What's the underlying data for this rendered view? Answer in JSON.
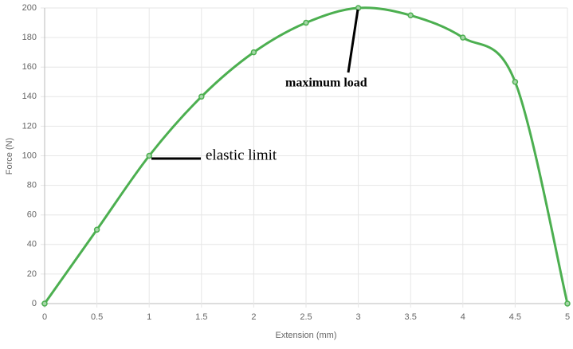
{
  "chart_data": {
    "type": "line",
    "x": [
      0,
      0.5,
      1,
      1.5,
      2,
      2.5,
      3,
      3.5,
      4,
      4.5,
      5
    ],
    "values": [
      0,
      50,
      100,
      140,
      170,
      190,
      200,
      195,
      180,
      150,
      0
    ],
    "color": "#4caf50",
    "xlabel": "Extension (mm)",
    "ylabel": "Force (N)",
    "xlim": [
      0,
      5
    ],
    "xticks": [
      0,
      0.5,
      1,
      1.5,
      2,
      2.5,
      3,
      3.5,
      4,
      4.5,
      5
    ],
    "ylim": [
      0,
      200
    ],
    "yticks": [
      0,
      20,
      40,
      60,
      80,
      100,
      120,
      140,
      160,
      180,
      200
    ],
    "grid": true,
    "annotations": [
      {
        "text": "elastic limit"
      },
      {
        "text": "maximum load"
      }
    ]
  }
}
